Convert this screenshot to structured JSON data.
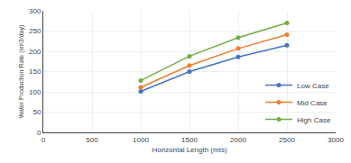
{
  "chart_data": {
    "type": "line",
    "x": [
      1000,
      1500,
      2000,
      2500
    ],
    "series": [
      {
        "name": "Low Case",
        "color": "#4472c4",
        "values": [
          101,
          150,
          186,
          215
        ]
      },
      {
        "name": "Mid Case",
        "color": "#ed7d31",
        "values": [
          111,
          165,
          207,
          241
        ]
      },
      {
        "name": "High Case",
        "color": "#70ad47",
        "values": [
          128,
          188,
          234,
          270
        ]
      }
    ],
    "xlabel": "Horizontal Length (mts)",
    "ylabel": "Water Production Rate (sm3/day)",
    "xlim": [
      0,
      3000
    ],
    "ylim": [
      0,
      300
    ],
    "xticks": [
      0,
      500,
      1000,
      1500,
      2000,
      2500,
      3000
    ],
    "yticks": [
      0,
      50,
      100,
      150,
      200,
      250,
      300
    ],
    "grid": true,
    "legend": "lower right",
    "marker": "circle"
  }
}
